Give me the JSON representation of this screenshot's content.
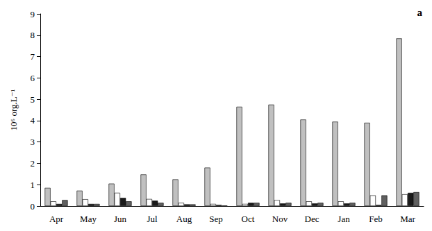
{
  "chart_data": {
    "type": "bar",
    "y_label": "10⁶ org.L⁻¹",
    "annotations": [
      "a"
    ],
    "categories": [
      "Apr",
      "May",
      "Jun",
      "Jul",
      "Aug",
      "Sep",
      "Oct",
      "Nov",
      "Dec",
      "Jan",
      "Feb",
      "Mar"
    ],
    "series": [
      {
        "color": "#c0c0c0",
        "values": [
          0.85,
          0.72,
          1.05,
          1.48,
          1.25,
          1.8,
          4.65,
          4.75,
          4.05,
          3.95,
          3.9,
          7.85
        ]
      },
      {
        "color": "#ffffff",
        "values": [
          0.22,
          0.32,
          0.62,
          0.33,
          0.15,
          0.1,
          0.1,
          0.28,
          0.22,
          0.22,
          0.5,
          0.55
        ]
      },
      {
        "color": "#1a1a1a",
        "values": [
          0.1,
          0.1,
          0.38,
          0.25,
          0.08,
          0.05,
          0.15,
          0.12,
          0.12,
          0.12,
          0.05,
          0.62
        ]
      },
      {
        "color": "#606060",
        "values": [
          0.28,
          0.1,
          0.22,
          0.15,
          0.08,
          0.02,
          0.15,
          0.15,
          0.15,
          0.15,
          0.5,
          0.65
        ]
      }
    ],
    "ylim": [
      0,
      9
    ],
    "yticks": [
      0,
      1,
      2,
      3,
      4,
      5,
      6,
      7,
      8,
      9
    ],
    "grid": false
  }
}
